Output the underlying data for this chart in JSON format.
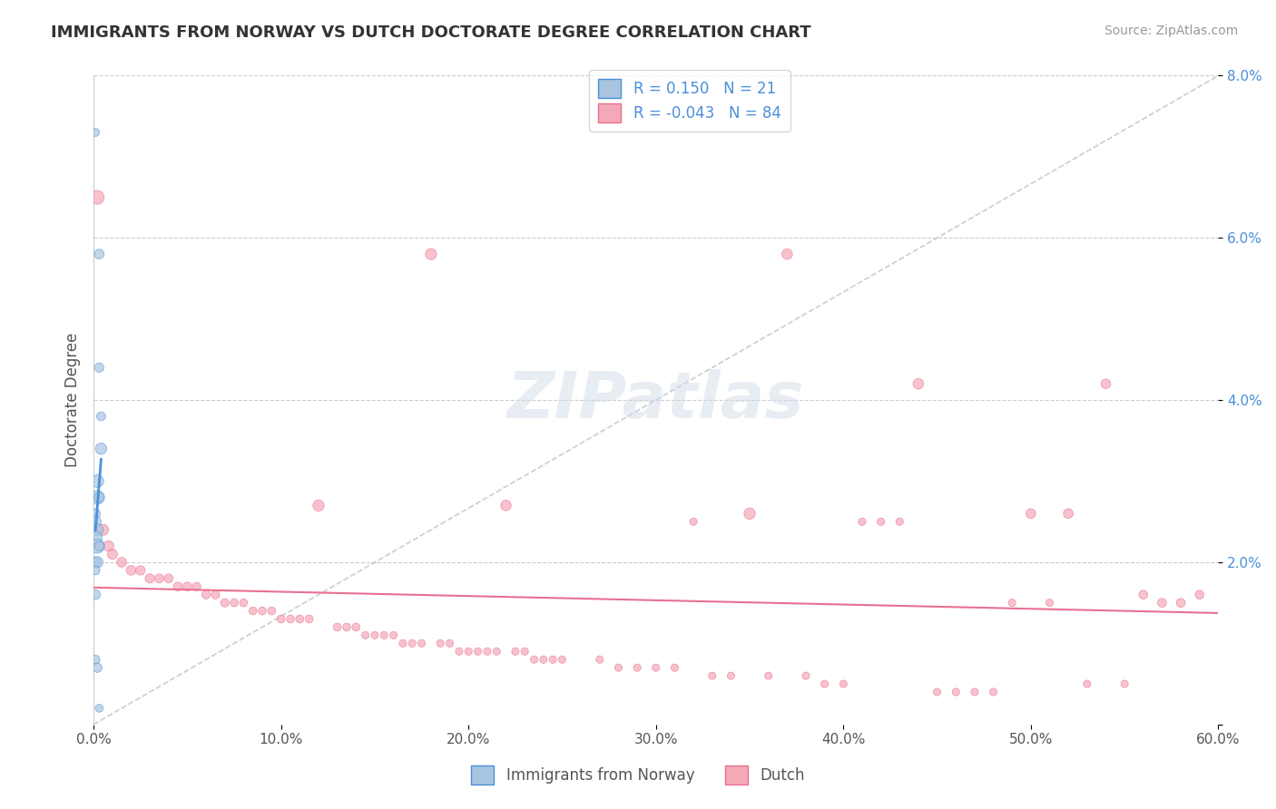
{
  "title": "IMMIGRANTS FROM NORWAY VS DUTCH DOCTORATE DEGREE CORRELATION CHART",
  "source": "Source: ZipAtlas.com",
  "xlabel_bottom": "",
  "ylabel": "Doctorate Degree",
  "legend_label1": "Immigrants from Norway",
  "legend_label2": "Dutch",
  "legend_R1": "0.150",
  "legend_N1": "21",
  "legend_R2": "-0.043",
  "legend_N2": "84",
  "xlim": [
    0.0,
    0.6
  ],
  "ylim": [
    0.0,
    0.08
  ],
  "xticks": [
    0.0,
    0.1,
    0.2,
    0.3,
    0.4,
    0.5,
    0.6
  ],
  "yticks": [
    0.0,
    0.02,
    0.04,
    0.06,
    0.08
  ],
  "xtick_labels": [
    "0.0%",
    "10.0%",
    "20.0%",
    "30.0%",
    "40.0%",
    "50.0%",
    "60.0%"
  ],
  "ytick_labels": [
    "",
    "2.0%",
    "4.0%",
    "6.0%",
    "8.0%"
  ],
  "color_blue": "#a8c4e0",
  "color_pink": "#f4a8b8",
  "line_blue": "#4a90d9",
  "line_pink": "#e87090",
  "line_diag": "#c0c0c0",
  "title_color": "#333333",
  "source_color": "#999999",
  "blue_points": [
    [
      0.001,
      0.073
    ],
    [
      0.003,
      0.058
    ],
    [
      0.003,
      0.044
    ],
    [
      0.004,
      0.038
    ],
    [
      0.004,
      0.034
    ],
    [
      0.002,
      0.03
    ],
    [
      0.002,
      0.028
    ],
    [
      0.003,
      0.028
    ],
    [
      0.001,
      0.026
    ],
    [
      0.001,
      0.025
    ],
    [
      0.002,
      0.024
    ],
    [
      0.001,
      0.023
    ],
    [
      0.002,
      0.022
    ],
    [
      0.003,
      0.022
    ],
    [
      0.001,
      0.02
    ],
    [
      0.002,
      0.02
    ],
    [
      0.001,
      0.019
    ],
    [
      0.001,
      0.016
    ],
    [
      0.001,
      0.008
    ],
    [
      0.002,
      0.007
    ],
    [
      0.003,
      0.002
    ]
  ],
  "blue_sizes": [
    40,
    60,
    55,
    50,
    80,
    100,
    120,
    70,
    60,
    80,
    90,
    110,
    130,
    60,
    70,
    80,
    50,
    60,
    50,
    55,
    40
  ],
  "pink_points": [
    [
      0.002,
      0.065
    ],
    [
      0.18,
      0.058
    ],
    [
      0.37,
      0.058
    ],
    [
      0.12,
      0.027
    ],
    [
      0.22,
      0.027
    ],
    [
      0.35,
      0.026
    ],
    [
      0.44,
      0.042
    ],
    [
      0.5,
      0.026
    ],
    [
      0.52,
      0.026
    ],
    [
      0.54,
      0.042
    ],
    [
      0.56,
      0.016
    ],
    [
      0.57,
      0.015
    ],
    [
      0.58,
      0.015
    ],
    [
      0.59,
      0.016
    ],
    [
      0.005,
      0.024
    ],
    [
      0.008,
      0.022
    ],
    [
      0.01,
      0.021
    ],
    [
      0.015,
      0.02
    ],
    [
      0.02,
      0.019
    ],
    [
      0.025,
      0.019
    ],
    [
      0.03,
      0.018
    ],
    [
      0.035,
      0.018
    ],
    [
      0.04,
      0.018
    ],
    [
      0.045,
      0.017
    ],
    [
      0.05,
      0.017
    ],
    [
      0.055,
      0.017
    ],
    [
      0.06,
      0.016
    ],
    [
      0.065,
      0.016
    ],
    [
      0.07,
      0.015
    ],
    [
      0.075,
      0.015
    ],
    [
      0.08,
      0.015
    ],
    [
      0.085,
      0.014
    ],
    [
      0.09,
      0.014
    ],
    [
      0.095,
      0.014
    ],
    [
      0.1,
      0.013
    ],
    [
      0.105,
      0.013
    ],
    [
      0.11,
      0.013
    ],
    [
      0.115,
      0.013
    ],
    [
      0.13,
      0.012
    ],
    [
      0.135,
      0.012
    ],
    [
      0.14,
      0.012
    ],
    [
      0.145,
      0.011
    ],
    [
      0.15,
      0.011
    ],
    [
      0.155,
      0.011
    ],
    [
      0.16,
      0.011
    ],
    [
      0.165,
      0.01
    ],
    [
      0.17,
      0.01
    ],
    [
      0.175,
      0.01
    ],
    [
      0.185,
      0.01
    ],
    [
      0.19,
      0.01
    ],
    [
      0.195,
      0.009
    ],
    [
      0.2,
      0.009
    ],
    [
      0.205,
      0.009
    ],
    [
      0.21,
      0.009
    ],
    [
      0.215,
      0.009
    ],
    [
      0.225,
      0.009
    ],
    [
      0.23,
      0.009
    ],
    [
      0.235,
      0.008
    ],
    [
      0.24,
      0.008
    ],
    [
      0.245,
      0.008
    ],
    [
      0.25,
      0.008
    ],
    [
      0.27,
      0.008
    ],
    [
      0.28,
      0.007
    ],
    [
      0.29,
      0.007
    ],
    [
      0.3,
      0.007
    ],
    [
      0.31,
      0.007
    ],
    [
      0.32,
      0.025
    ],
    [
      0.33,
      0.006
    ],
    [
      0.34,
      0.006
    ],
    [
      0.36,
      0.006
    ],
    [
      0.38,
      0.006
    ],
    [
      0.39,
      0.005
    ],
    [
      0.4,
      0.005
    ],
    [
      0.41,
      0.025
    ],
    [
      0.42,
      0.025
    ],
    [
      0.43,
      0.025
    ],
    [
      0.45,
      0.004
    ],
    [
      0.46,
      0.004
    ],
    [
      0.47,
      0.004
    ],
    [
      0.48,
      0.004
    ],
    [
      0.49,
      0.015
    ],
    [
      0.51,
      0.015
    ],
    [
      0.53,
      0.005
    ],
    [
      0.55,
      0.005
    ]
  ],
  "pink_sizes": [
    120,
    80,
    70,
    80,
    70,
    80,
    70,
    60,
    60,
    60,
    50,
    50,
    50,
    50,
    80,
    70,
    65,
    60,
    60,
    55,
    55,
    50,
    50,
    50,
    50,
    45,
    45,
    45,
    45,
    40,
    40,
    40,
    40,
    40,
    40,
    40,
    40,
    40,
    40,
    40,
    40,
    35,
    35,
    35,
    35,
    35,
    35,
    35,
    35,
    35,
    35,
    35,
    35,
    35,
    35,
    35,
    35,
    35,
    35,
    35,
    35,
    35,
    35,
    35,
    35,
    35,
    35,
    35,
    35,
    35,
    35,
    35,
    35,
    35,
    35,
    35,
    35,
    35,
    35,
    35,
    35,
    35,
    35,
    35
  ]
}
